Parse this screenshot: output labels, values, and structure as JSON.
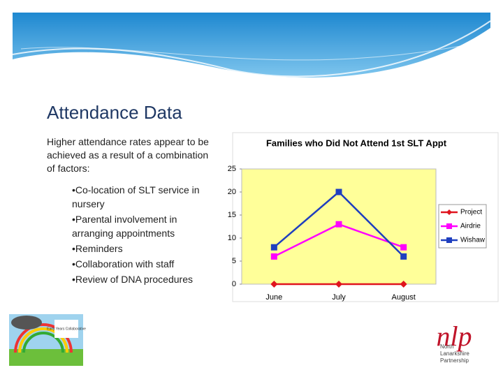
{
  "slide": {
    "title": "Attendance Data",
    "intro": "Higher attendance rates appear to be achieved as a result of a combination of factors:",
    "bullets": [
      "•Co-location of SLT service in nursery",
      "•Parental involvement in arranging appointments",
      "•Reminders",
      "•Collaboration with staff",
      "•Review of DNA procedures"
    ],
    "left_logo": "Early Years Collaborative",
    "right_logo": {
      "mark": "nlp",
      "text": "North Lanarkshire Partnership"
    }
  },
  "chart_data": {
    "type": "line",
    "title": "Families who Did Not Attend 1st SLT Appt",
    "categories": [
      "June",
      "July",
      "August"
    ],
    "series": [
      {
        "name": "Project",
        "color": "#e0141e",
        "marker": "diamond",
        "values": [
          0,
          0,
          0
        ]
      },
      {
        "name": "Airdrie",
        "color": "#ff00ff",
        "marker": "square",
        "values": [
          6,
          13,
          8
        ]
      },
      {
        "name": "Wishaw",
        "color": "#1f3fbf",
        "marker": "square",
        "values": [
          8,
          20,
          6
        ]
      }
    ],
    "ylim": [
      0,
      25
    ],
    "yticks": [
      0,
      5,
      10,
      15,
      20,
      25
    ],
    "grid": false,
    "legend": "right",
    "plot_background": "#ffff99"
  }
}
